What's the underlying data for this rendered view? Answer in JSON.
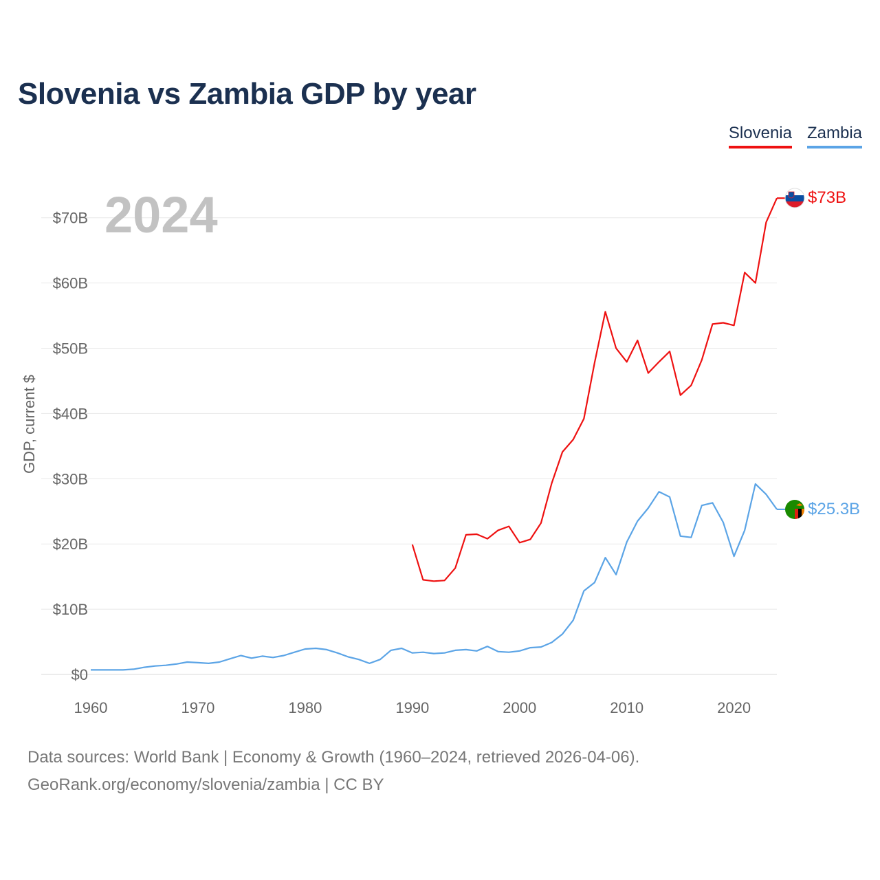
{
  "title": "Slovenia vs Zambia GDP by year",
  "legend": [
    {
      "label": "Slovenia",
      "color": "#ee1111"
    },
    {
      "label": "Zambia",
      "color": "#5ba4e6"
    }
  ],
  "year_watermark": "2024",
  "source_line1": "Data sources: World Bank | Economy & Growth (1960–2024, retrieved 2026-04-06).",
  "source_line2": "GeoRank.org/economy/slovenia/zambia | CC BY",
  "chart_data": {
    "type": "line",
    "title": "Slovenia vs Zambia GDP by year",
    "xlabel": "",
    "ylabel": "GDP, current $",
    "xlim": [
      1960,
      2024
    ],
    "ylim": [
      0,
      75
    ],
    "x_ticks": [
      1960,
      1970,
      1980,
      1990,
      2000,
      2010,
      2020
    ],
    "y_ticks": [
      0,
      10,
      20,
      30,
      40,
      50,
      60,
      70
    ],
    "y_tick_labels": [
      "$0",
      "$10B",
      "$20B",
      "$30B",
      "$40B",
      "$50B",
      "$60B",
      "$70B"
    ],
    "grid": true,
    "series": [
      {
        "name": "Slovenia",
        "color": "#ee1111",
        "end_label": "$73B",
        "flag_icon": "slovenia-flag-icon",
        "x": [
          1990,
          1991,
          1992,
          1993,
          1994,
          1995,
          1996,
          1997,
          1998,
          1999,
          2000,
          2001,
          2002,
          2003,
          2004,
          2005,
          2006,
          2007,
          2008,
          2009,
          2010,
          2011,
          2012,
          2013,
          2014,
          2015,
          2016,
          2017,
          2018,
          2019,
          2020,
          2021,
          2022,
          2023,
          2024
        ],
        "values": [
          19.9,
          14.5,
          14.3,
          14.4,
          16.3,
          21.4,
          21.5,
          20.8,
          22.1,
          22.7,
          20.2,
          20.7,
          23.2,
          29.3,
          34.1,
          36.0,
          39.2,
          47.8,
          55.6,
          50.0,
          47.9,
          51.2,
          46.2,
          47.9,
          49.5,
          42.8,
          44.3,
          48.2,
          53.7,
          53.9,
          53.5,
          61.6,
          60.0,
          69.3,
          73.0
        ]
      },
      {
        "name": "Zambia",
        "color": "#5ba4e6",
        "end_label": "$25.3B",
        "flag_icon": "zambia-flag-icon",
        "x": [
          1960,
          1961,
          1962,
          1963,
          1964,
          1965,
          1966,
          1967,
          1968,
          1969,
          1970,
          1971,
          1972,
          1973,
          1974,
          1975,
          1976,
          1977,
          1978,
          1979,
          1980,
          1981,
          1982,
          1983,
          1984,
          1985,
          1986,
          1987,
          1988,
          1989,
          1990,
          1991,
          1992,
          1993,
          1994,
          1995,
          1996,
          1997,
          1998,
          1999,
          2000,
          2001,
          2002,
          2003,
          2004,
          2005,
          2006,
          2007,
          2008,
          2009,
          2010,
          2011,
          2012,
          2013,
          2014,
          2015,
          2016,
          2017,
          2018,
          2019,
          2020,
          2021,
          2022,
          2023,
          2024
        ],
        "values": [
          0.7,
          0.7,
          0.7,
          0.7,
          0.8,
          1.1,
          1.3,
          1.4,
          1.6,
          1.9,
          1.8,
          1.7,
          1.9,
          2.4,
          2.9,
          2.5,
          2.8,
          2.6,
          2.9,
          3.4,
          3.9,
          4.0,
          3.8,
          3.3,
          2.7,
          2.3,
          1.7,
          2.3,
          3.7,
          4.0,
          3.3,
          3.4,
          3.2,
          3.3,
          3.7,
          3.8,
          3.6,
          4.3,
          3.5,
          3.4,
          3.6,
          4.1,
          4.2,
          4.9,
          6.2,
          8.3,
          12.8,
          14.1,
          17.9,
          15.3,
          20.3,
          23.5,
          25.5,
          28.0,
          27.2,
          21.2,
          21.0,
          25.9,
          26.3,
          23.3,
          18.1,
          22.1,
          29.2,
          27.6,
          25.3
        ]
      }
    ]
  }
}
